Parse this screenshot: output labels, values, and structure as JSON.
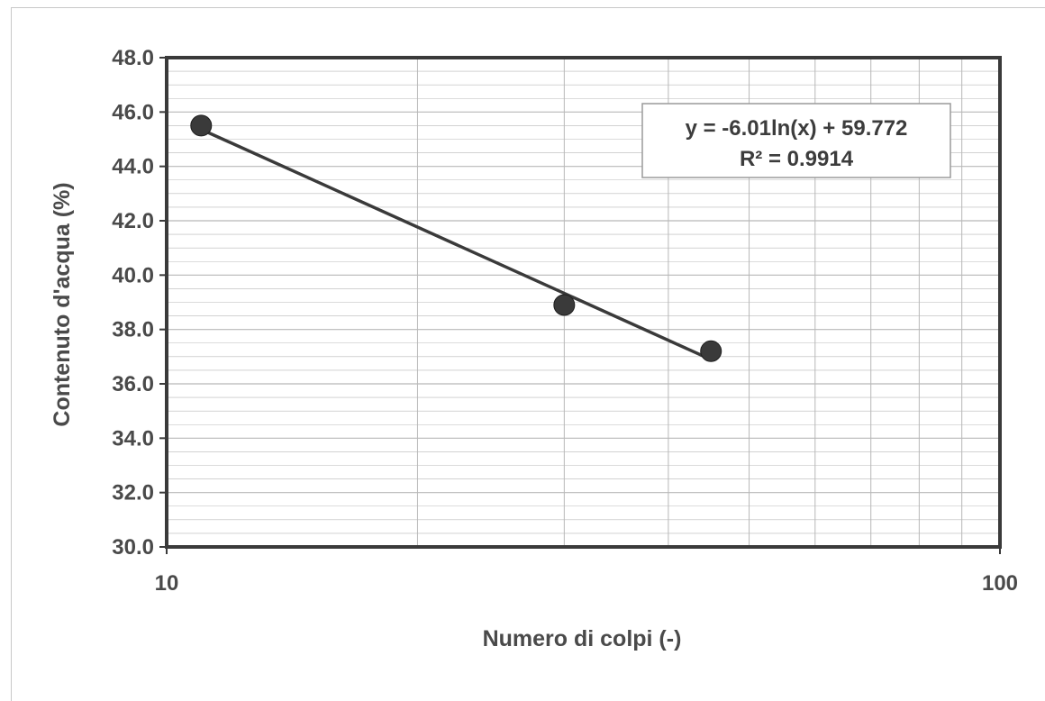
{
  "chart_data": {
    "type": "scatter",
    "title": "",
    "xlabel": "Numero di colpi (-)",
    "ylabel": "Contenuto d'acqua (%)",
    "x_scale": "log",
    "xlim": [
      10,
      100
    ],
    "ylim": [
      30.0,
      48.0
    ],
    "x_ticks": [
      "10",
      "100"
    ],
    "y_ticks": [
      "30.0",
      "32.0",
      "34.0",
      "36.0",
      "38.0",
      "40.0",
      "42.0",
      "44.0",
      "46.0",
      "48.0"
    ],
    "grid": true,
    "series": [
      {
        "points": [
          {
            "x": 11,
            "y": 45.5
          },
          {
            "x": 30,
            "y": 38.9
          },
          {
            "x": 45,
            "y": 37.2
          }
        ],
        "marker": "circle",
        "color": "#3a3a3a"
      }
    ],
    "trendline": {
      "type": "logarithmic",
      "a": -6.01,
      "b": 59.772,
      "x_range": [
        11,
        45
      ],
      "equation_label": "y = -6.01ln(x) + 59.772",
      "r2_label": "R² = 0.9914"
    },
    "colors": {
      "axis": "#3a3a3a",
      "grid": "#b8b8b8",
      "text": "#4a4a4a"
    }
  }
}
